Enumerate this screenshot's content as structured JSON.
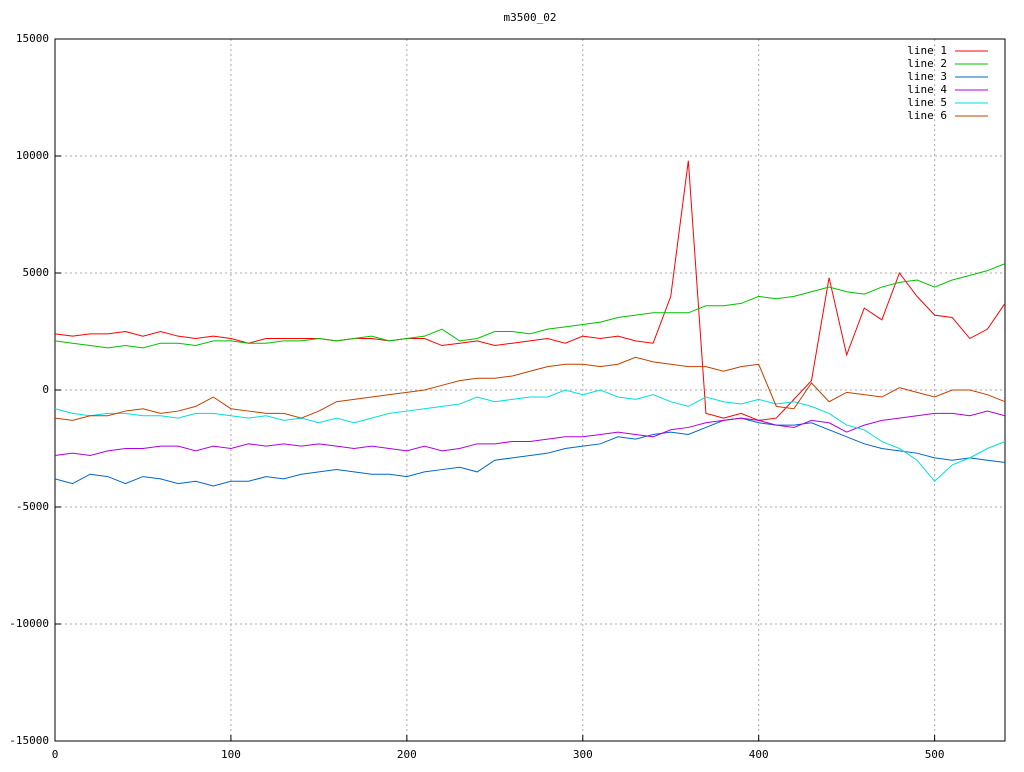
{
  "chart_data": {
    "type": "line",
    "title": "m3500_02",
    "x": [
      0,
      10,
      20,
      30,
      40,
      50,
      60,
      70,
      80,
      90,
      100,
      110,
      120,
      130,
      140,
      150,
      160,
      170,
      180,
      190,
      200,
      210,
      220,
      230,
      240,
      250,
      260,
      270,
      280,
      290,
      300,
      310,
      320,
      330,
      340,
      350,
      360,
      370,
      380,
      390,
      400,
      410,
      420,
      430,
      440,
      450,
      460,
      470,
      480,
      490,
      500,
      510,
      520,
      530,
      540
    ],
    "series": [
      {
        "name": "line 1",
        "color": "#ff0000",
        "values": [
          2400,
          2300,
          2400,
          2400,
          2500,
          2300,
          2500,
          2300,
          2200,
          2300,
          2200,
          2000,
          2200,
          2200,
          2200,
          2200,
          2100,
          2200,
          2200,
          2100,
          2200,
          2200,
          1900,
          2000,
          2100,
          1900,
          2000,
          2100,
          2200,
          2000,
          2300,
          2200,
          2300,
          2100,
          2000,
          4000,
          9800,
          -1000,
          -1200,
          -1000,
          -1300,
          -1200,
          -400,
          400,
          4800,
          1500,
          3500,
          3000,
          5000,
          4000,
          3200,
          3100,
          2200,
          2600,
          3700
        ]
      },
      {
        "name": "line 2",
        "color": "#00c000",
        "values": [
          2100,
          2000,
          1900,
          1800,
          1900,
          1800,
          2000,
          2000,
          1900,
          2100,
          2100,
          2000,
          2000,
          2100,
          2100,
          2200,
          2100,
          2200,
          2300,
          2100,
          2200,
          2300,
          2600,
          2100,
          2200,
          2500,
          2500,
          2400,
          2600,
          2700,
          2800,
          2900,
          3100,
          3200,
          3300,
          3300,
          3300,
          3600,
          3600,
          3700,
          4000,
          3900,
          4000,
          4200,
          4400,
          4200,
          4100,
          4400,
          4600,
          4700,
          4400,
          4700,
          4900,
          5100,
          5400
        ]
      },
      {
        "name": "line 3",
        "color": "#0066cc",
        "values": [
          -3800,
          -4000,
          -3600,
          -3700,
          -4000,
          -3700,
          -3800,
          -4000,
          -3900,
          -4100,
          -3900,
          -3900,
          -3700,
          -3800,
          -3600,
          -3500,
          -3400,
          -3500,
          -3600,
          -3600,
          -3700,
          -3500,
          -3400,
          -3300,
          -3500,
          -3000,
          -2900,
          -2800,
          -2700,
          -2500,
          -2400,
          -2300,
          -2000,
          -2100,
          -1900,
          -1800,
          -1900,
          -1600,
          -1300,
          -1200,
          -1400,
          -1500,
          -1500,
          -1400,
          -1700,
          -2000,
          -2300,
          -2500,
          -2600,
          -2700,
          -2900,
          -3000,
          -2900,
          -3000,
          -3100
        ]
      },
      {
        "name": "line 4",
        "color": "#b000e0",
        "values": [
          -2800,
          -2700,
          -2800,
          -2600,
          -2500,
          -2500,
          -2400,
          -2400,
          -2600,
          -2400,
          -2500,
          -2300,
          -2400,
          -2300,
          -2400,
          -2300,
          -2400,
          -2500,
          -2400,
          -2500,
          -2600,
          -2400,
          -2600,
          -2500,
          -2300,
          -2300,
          -2200,
          -2200,
          -2100,
          -2000,
          -2000,
          -1900,
          -1800,
          -1900,
          -2000,
          -1700,
          -1600,
          -1400,
          -1300,
          -1200,
          -1300,
          -1500,
          -1600,
          -1300,
          -1400,
          -1800,
          -1500,
          -1300,
          -1200,
          -1100,
          -1000,
          -1000,
          -1100,
          -900,
          -1100
        ]
      },
      {
        "name": "line 5",
        "color": "#00dddd",
        "values": [
          -800,
          -1000,
          -1100,
          -1000,
          -1000,
          -1100,
          -1100,
          -1200,
          -1000,
          -1000,
          -1100,
          -1200,
          -1100,
          -1300,
          -1200,
          -1400,
          -1200,
          -1400,
          -1200,
          -1000,
          -900,
          -800,
          -700,
          -600,
          -300,
          -500,
          -400,
          -300,
          -300,
          0,
          -200,
          0,
          -300,
          -400,
          -200,
          -500,
          -700,
          -300,
          -500,
          -600,
          -400,
          -600,
          -500,
          -700,
          -1000,
          -1500,
          -1700,
          -2200,
          -2500,
          -3000,
          -3900,
          -3200,
          -2900,
          -2500,
          -2200
        ]
      },
      {
        "name": "line 6",
        "color": "#c04000",
        "values": [
          -1200,
          -1300,
          -1100,
          -1100,
          -900,
          -800,
          -1000,
          -900,
          -700,
          -300,
          -800,
          -900,
          -1000,
          -1000,
          -1200,
          -900,
          -500,
          -400,
          -300,
          -200,
          -100,
          0,
          200,
          400,
          500,
          500,
          600,
          800,
          1000,
          1100,
          1100,
          1000,
          1100,
          1400,
          1200,
          1100,
          1000,
          1000,
          800,
          1000,
          1100,
          -700,
          -800,
          300,
          -500,
          -100,
          -200,
          -300,
          100,
          -100,
          -300,
          0,
          0,
          -200,
          -500
        ]
      }
    ],
    "xlim": [
      0,
      540
    ],
    "ylim": [
      -15000,
      15000
    ],
    "xticks": [
      0,
      100,
      200,
      300,
      400,
      500
    ],
    "yticks": [
      -15000,
      -10000,
      -5000,
      0,
      5000,
      10000,
      15000
    ],
    "grid": true,
    "legend": "top-right"
  }
}
